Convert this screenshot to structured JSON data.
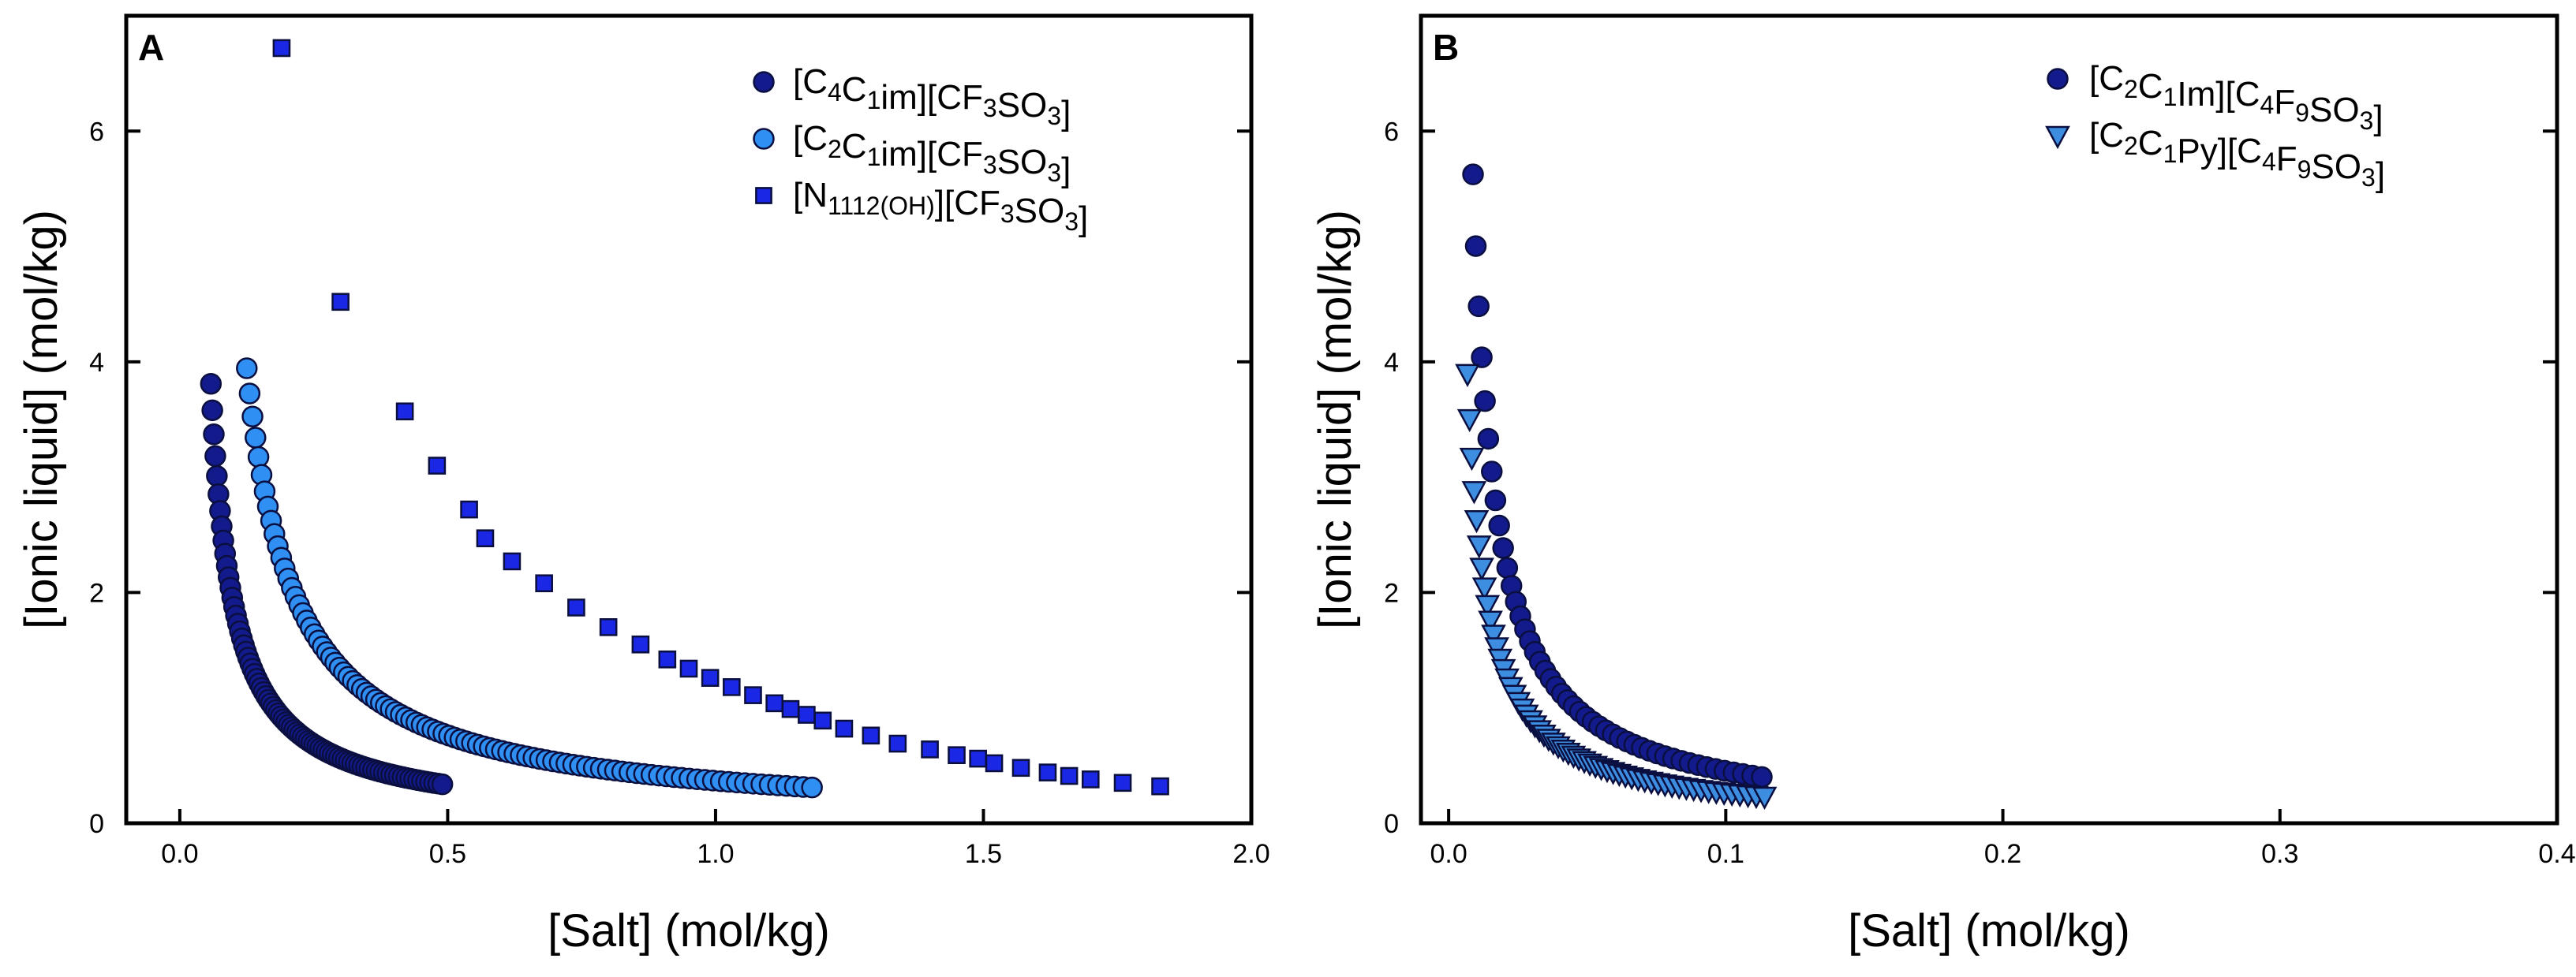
{
  "chart_data": [
    {
      "type": "scatter",
      "panel": "A",
      "xlabel": "[Salt] (mol/kg)",
      "ylabel": "[Ionic liquid] (mol/kg)",
      "xlim": [
        -0.1,
        2.0
      ],
      "ylim": [
        0,
        7.0
      ],
      "xticks": [
        0.0,
        0.5,
        1.0,
        1.5,
        2.0
      ],
      "xtick_labels": [
        "0.0",
        "0.5",
        "1.0",
        "1.5",
        "2.0"
      ],
      "yticks": [
        0,
        2,
        4,
        6
      ],
      "ytick_labels": [
        "0",
        "2",
        "4",
        "6"
      ],
      "legend_position": "top-right",
      "series": [
        {
          "name": "[C4C1im][CF3SO3]",
          "legend_parts": [
            {
              "t": "[C"
            },
            {
              "t": "4",
              "sub": true
            },
            {
              "t": "C"
            },
            {
              "t": "1",
              "sub": true
            },
            {
              "t": "im][CF"
            },
            {
              "t": "3",
              "sub": true
            },
            {
              "t": "SO"
            },
            {
              "t": "3",
              "sub": true
            },
            {
              "t": "]"
            }
          ],
          "marker": "circle",
          "color": "#131a8c",
          "formula": {
            "a": 0.16,
            "x0": 0.016,
            "n": 84,
            "x_start": 0.058,
            "x_end": 0.49
          }
        },
        {
          "name": "[C2C1im][CF3SO3]",
          "legend_parts": [
            {
              "t": "[C"
            },
            {
              "t": "2",
              "sub": true
            },
            {
              "t": "C"
            },
            {
              "t": "1",
              "sub": true
            },
            {
              "t": "im][CF"
            },
            {
              "t": "3",
              "sub": true
            },
            {
              "t": "SO"
            },
            {
              "t": "3",
              "sub": true
            },
            {
              "t": "]"
            }
          ],
          "marker": "circle",
          "color": "#2f8ff2",
          "formula": {
            "a": 0.355,
            "x0": 0.035,
            "n": 100,
            "x_start": 0.125,
            "x_end": 1.18
          }
        },
        {
          "name": "[N1112(OH)][CF3SO3]",
          "legend_parts": [
            {
              "t": "[N"
            },
            {
              "t": "1112(OH)",
              "sub": true
            },
            {
              "t": "][CF"
            },
            {
              "t": "3",
              "sub": true
            },
            {
              "t": "SO"
            },
            {
              "t": "3",
              "sub": true
            },
            {
              "t": "]"
            }
          ],
          "marker": "square",
          "color": "#1a28e6",
          "points": [
            [
              0.19,
              6.72
            ],
            [
              0.3,
              4.52
            ],
            [
              0.42,
              3.57
            ],
            [
              0.48,
              3.1
            ],
            [
              0.54,
              2.72
            ],
            [
              0.57,
              2.47
            ],
            [
              0.62,
              2.27
            ],
            [
              0.68,
              2.08
            ],
            [
              0.74,
              1.87
            ],
            [
              0.8,
              1.7
            ],
            [
              0.86,
              1.55
            ],
            [
              0.91,
              1.42
            ],
            [
              0.95,
              1.34
            ],
            [
              0.99,
              1.26
            ],
            [
              1.03,
              1.18
            ],
            [
              1.07,
              1.11
            ],
            [
              1.11,
              1.04
            ],
            [
              1.14,
              0.99
            ],
            [
              1.17,
              0.94
            ],
            [
              1.2,
              0.89
            ],
            [
              1.24,
              0.82
            ],
            [
              1.29,
              0.76
            ],
            [
              1.34,
              0.69
            ],
            [
              1.4,
              0.64
            ],
            [
              1.45,
              0.59
            ],
            [
              1.49,
              0.56
            ],
            [
              1.52,
              0.52
            ],
            [
              1.57,
              0.48
            ],
            [
              1.62,
              0.44
            ],
            [
              1.66,
              0.41
            ],
            [
              1.7,
              0.38
            ],
            [
              1.76,
              0.35
            ],
            [
              1.83,
              0.32
            ]
          ]
        }
      ]
    },
    {
      "type": "scatter",
      "panel": "B",
      "xlabel": "[Salt] (mol/kg)",
      "ylabel": "[Ionic liquid] (mol/kg)",
      "xlim": [
        -0.01,
        0.4
      ],
      "ylim": [
        0,
        7.0
      ],
      "xticks": [
        0.0,
        0.1,
        0.2,
        0.3,
        0.4
      ],
      "xtick_labels": [
        "0.0",
        "0.1",
        "0.2",
        "0.3",
        "0.4"
      ],
      "yticks": [
        0,
        2,
        4,
        6
      ],
      "ytick_labels": [
        "0",
        "2",
        "4",
        "6"
      ],
      "legend_position": "top-right",
      "series": [
        {
          "name": "[C2C1Im][C4F9SO3]",
          "legend_parts": [
            {
              "t": "[C"
            },
            {
              "t": "2",
              "sub": true
            },
            {
              "t": "C"
            },
            {
              "t": "1",
              "sub": true
            },
            {
              "t": "Im][C"
            },
            {
              "t": "4",
              "sub": true
            },
            {
              "t": "F"
            },
            {
              "t": "9",
              "sub": true
            },
            {
              "t": "SO"
            },
            {
              "t": "3",
              "sub": true
            },
            {
              "t": "]"
            }
          ],
          "marker": "circle",
          "color": "#131a8c",
          "formula": {
            "a": 0.045,
            "x0": 0.0008,
            "n": 48,
            "x_start": 0.0088,
            "x_end": 0.113
          }
        },
        {
          "name": "[C2C1Py][C4F9SO3]",
          "legend_parts": [
            {
              "t": "[C"
            },
            {
              "t": "2",
              "sub": true
            },
            {
              "t": "C"
            },
            {
              "t": "1",
              "sub": true
            },
            {
              "t": "Py][C"
            },
            {
              "t": "4",
              "sub": true
            },
            {
              "t": "F"
            },
            {
              "t": "9",
              "sub": true
            },
            {
              "t": "SO"
            },
            {
              "t": "3",
              "sub": true
            },
            {
              "t": "]"
            }
          ],
          "marker": "triangle-down",
          "color": "#3d8de0",
          "formula": {
            "a": 0.0265,
            "x0": 0.0,
            "n": 58,
            "x_start": 0.0068,
            "x_end": 0.114
          }
        }
      ]
    }
  ]
}
